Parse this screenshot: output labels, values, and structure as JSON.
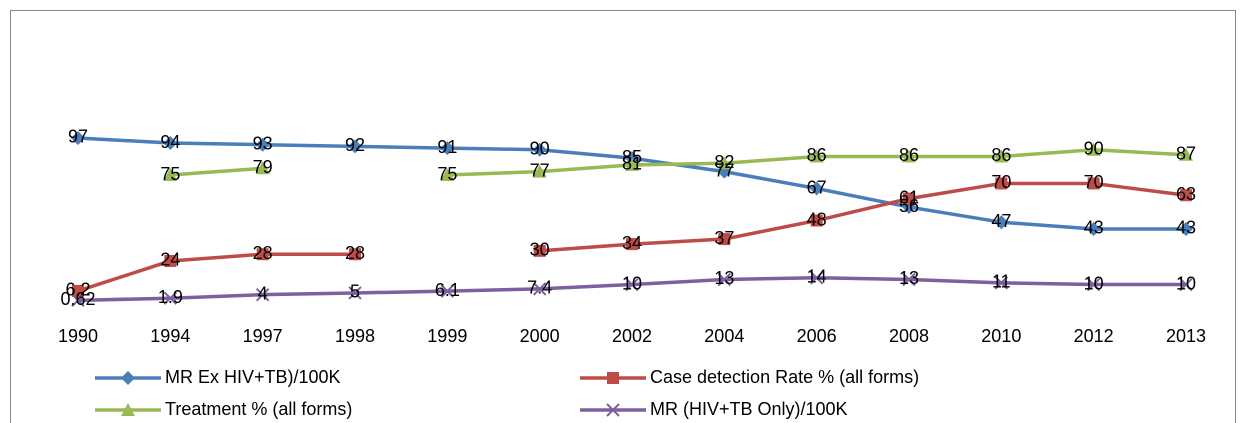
{
  "chart_data": {
    "type": "line",
    "categories": [
      "1990",
      "1994",
      "1997",
      "1998",
      "1999",
      "2000",
      "2002",
      "2004",
      "2006",
      "2008",
      "2010",
      "2012",
      "2013"
    ],
    "ylim": [
      0,
      120
    ],
    "series": [
      {
        "name": "MR Ex HIV+TB)/100K",
        "color": "#4a7ebb",
        "marker": "diamond",
        "values": [
          97,
          94,
          93,
          92,
          91,
          90,
          85,
          77,
          67,
          56,
          47,
          43,
          43
        ]
      },
      {
        "name": "Case detection Rate % (all forms)",
        "color": "#be4b48",
        "marker": "square",
        "values": [
          6.2,
          24,
          28,
          28,
          null,
          30,
          34,
          37,
          48,
          61,
          70,
          70,
          63
        ]
      },
      {
        "name": "Treatment % (all forms)",
        "color": "#98b954",
        "marker": "triangle",
        "values": [
          null,
          75,
          79,
          null,
          75,
          77,
          81,
          82,
          86,
          86,
          86,
          90,
          87
        ]
      },
      {
        "name": "MR (HIV+TB Only)/100K",
        "color": "#7d60a0",
        "marker": "x",
        "values": [
          0.62,
          1.9,
          4,
          5,
          6.1,
          7.4,
          10,
          13,
          14,
          13,
          11,
          10,
          10
        ]
      }
    ]
  }
}
